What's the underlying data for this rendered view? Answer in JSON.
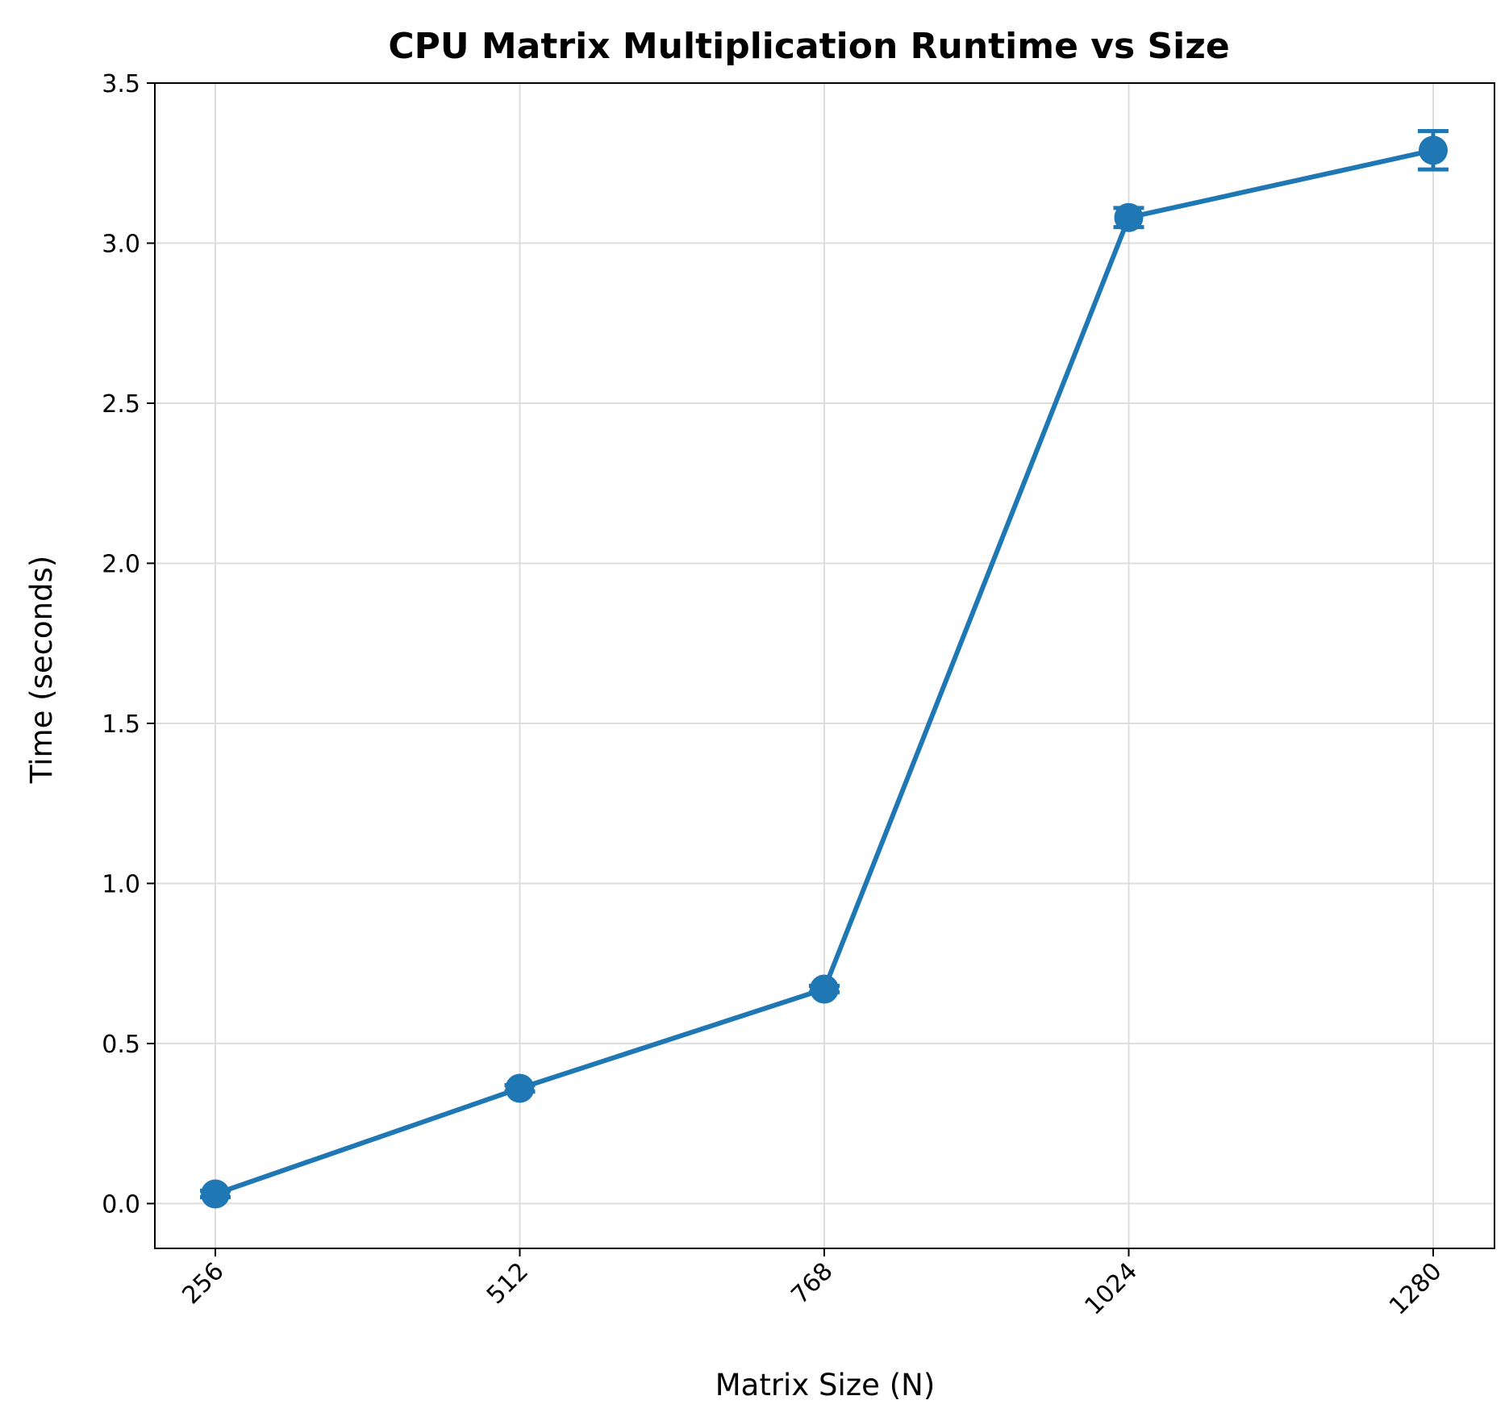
{
  "colors": {
    "series": "#1f77b4",
    "grid": "#dddddd",
    "axes": "#000000",
    "background": "#ffffff"
  },
  "chart_data": {
    "type": "line",
    "title": "CPU Matrix Multiplication Runtime vs Size",
    "xlabel": "Matrix Size (N)",
    "ylabel": "Time (seconds)",
    "categories": [
      "256",
      "512",
      "768",
      "1024",
      "1280"
    ],
    "x_tick_rotation": 45,
    "yticks": [
      "0.0",
      "0.5",
      "1.0",
      "1.5",
      "2.0",
      "2.5",
      "3.0",
      "3.5"
    ],
    "ylim": [
      -0.14,
      3.5
    ],
    "grid": true,
    "legend": "none",
    "series": [
      {
        "marker": "circle",
        "error_bars": true,
        "values": [
          0.03,
          0.36,
          0.67,
          3.08,
          3.29
        ],
        "errors": [
          0.01,
          0.01,
          0.01,
          0.03,
          0.06
        ]
      }
    ]
  }
}
